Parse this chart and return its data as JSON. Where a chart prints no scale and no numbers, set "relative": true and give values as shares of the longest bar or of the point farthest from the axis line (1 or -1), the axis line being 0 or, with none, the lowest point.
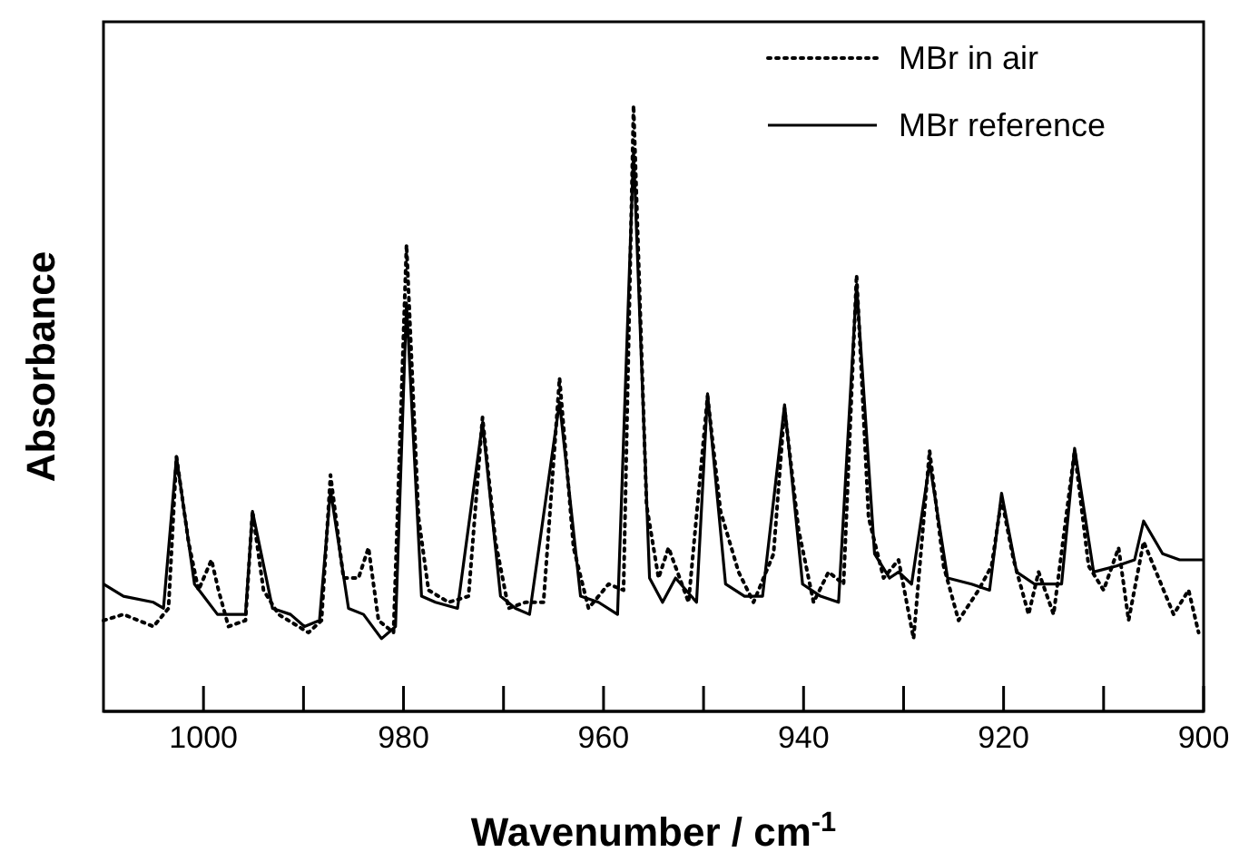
{
  "chart_data": {
    "type": "line",
    "relative": true,
    "xlabel": "Wavenumber / cm$^{-1}$",
    "ylabel": "Absorbance",
    "xlim": [
      1010,
      900
    ],
    "xticks": [
      {
        "value": 1000,
        "label": "1000"
      },
      {
        "value": 990,
        "label": null
      },
      980,
      {
        "value": 970,
        "label": null
      },
      960,
      {
        "value": 950,
        "label": null
      },
      940,
      {
        "value": 930,
        "label": null
      },
      920,
      {
        "value": 910,
        "label": null
      },
      900
    ],
    "legend": "top right",
    "grid": false,
    "series": [
      {
        "name": "MBr in air",
        "color": "#000000",
        "line_style": "dotted",
        "x": [
          1010,
          1008,
          1005,
          1003.5,
          1002.7,
          1001.5,
          1000.5,
          999.2,
          998.5,
          997.5,
          995.8,
          995.1,
          994,
          992.5,
          990.5,
          989.5,
          988.2,
          987.3,
          986,
          984.5,
          983.5,
          982.5,
          981,
          979.7,
          978.5,
          977.5,
          975.5,
          973.5,
          972.1,
          970.8,
          969.5,
          967.8,
          966,
          964.4,
          963,
          961.5,
          959.5,
          958,
          957,
          955.7,
          954.5,
          953.5,
          951.5,
          949.6,
          948.3,
          946.5,
          945,
          943,
          941.9,
          940.5,
          939,
          937.5,
          936,
          934.7,
          933.5,
          932,
          930.5,
          929,
          927.4,
          926,
          924.5,
          922.5,
          921.2,
          920.2,
          919,
          917.5,
          916.5,
          915,
          912.9,
          911.5,
          910,
          908.5,
          907.5,
          906,
          904.5,
          903,
          901.5,
          900.5
        ],
        "values": [
          0.15,
          0.16,
          0.14,
          0.17,
          0.42,
          0.28,
          0.2,
          0.25,
          0.2,
          0.14,
          0.15,
          0.33,
          0.2,
          0.16,
          0.14,
          0.13,
          0.15,
          0.39,
          0.22,
          0.22,
          0.27,
          0.15,
          0.13,
          0.77,
          0.32,
          0.2,
          0.18,
          0.19,
          0.485,
          0.28,
          0.17,
          0.18,
          0.18,
          0.55,
          0.27,
          0.17,
          0.21,
          0.2,
          1.0,
          0.34,
          0.22,
          0.27,
          0.18,
          0.52,
          0.33,
          0.23,
          0.18,
          0.26,
          0.5,
          0.3,
          0.18,
          0.23,
          0.21,
          0.72,
          0.32,
          0.22,
          0.25,
          0.12,
          0.43,
          0.24,
          0.15,
          0.2,
          0.24,
          0.35,
          0.25,
          0.16,
          0.23,
          0.16,
          0.43,
          0.24,
          0.2,
          0.27,
          0.15,
          0.28,
          0.22,
          0.16,
          0.2,
          0.13
        ]
      },
      {
        "name": "MBr reference",
        "color": "#000000",
        "line_style": "solid",
        "x": [
          1010,
          1008,
          1005,
          1004,
          1002.7,
          1000.9,
          998.6,
          995.8,
          995.1,
          993.1,
          991.3,
          989.9,
          988.4,
          987.3,
          985.5,
          984,
          982.2,
          980.8,
          979.7,
          978.2,
          976.8,
          974.6,
          972.1,
          970.3,
          968.8,
          967.4,
          964.4,
          962.3,
          960.5,
          958.6,
          957,
          955.4,
          954.1,
          952.8,
          950.7,
          949.6,
          947.8,
          945.9,
          944.1,
          941.9,
          940.1,
          938.3,
          936.5,
          934.7,
          932.9,
          931.4,
          930.5,
          929.2,
          927.4,
          925.6,
          923.2,
          921.4,
          920.2,
          918.7,
          916.9,
          914.2,
          912.9,
          911,
          908.7,
          906.9,
          906,
          904.1,
          902.4,
          900
        ],
        "values": [
          0.21,
          0.19,
          0.18,
          0.17,
          0.42,
          0.21,
          0.16,
          0.16,
          0.33,
          0.17,
          0.16,
          0.14,
          0.15,
          0.365,
          0.17,
          0.16,
          0.12,
          0.14,
          0.674,
          0.19,
          0.18,
          0.17,
          0.476,
          0.19,
          0.17,
          0.16,
          0.51,
          0.19,
          0.18,
          0.16,
          0.925,
          0.22,
          0.18,
          0.22,
          0.18,
          0.524,
          0.21,
          0.19,
          0.19,
          0.506,
          0.21,
          0.19,
          0.18,
          0.704,
          0.26,
          0.22,
          0.23,
          0.21,
          0.41,
          0.22,
          0.21,
          0.2,
          0.36,
          0.23,
          0.21,
          0.21,
          0.434,
          0.23,
          0.24,
          0.25,
          0.314,
          0.26,
          0.25,
          0.25
        ]
      }
    ]
  }
}
